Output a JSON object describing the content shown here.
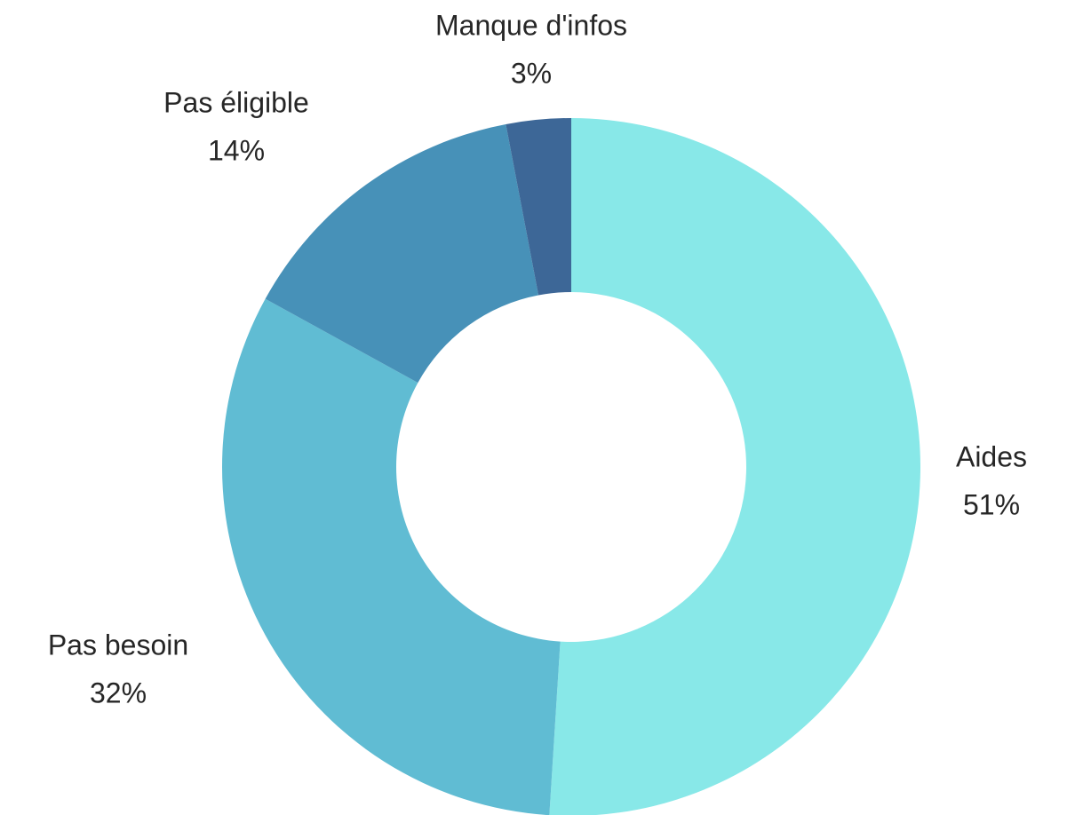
{
  "chart_data": {
    "type": "donut",
    "categories": [
      "Aides",
      "Pas besoin",
      "Pas éligible",
      "Manque d'infos"
    ],
    "values": [
      51,
      32,
      14,
      3
    ],
    "value_labels": [
      "51%",
      "32%",
      "14%",
      "3%"
    ],
    "colors": [
      "#88e8e8",
      "#60bcd3",
      "#4791b8",
      "#3d6797"
    ]
  }
}
